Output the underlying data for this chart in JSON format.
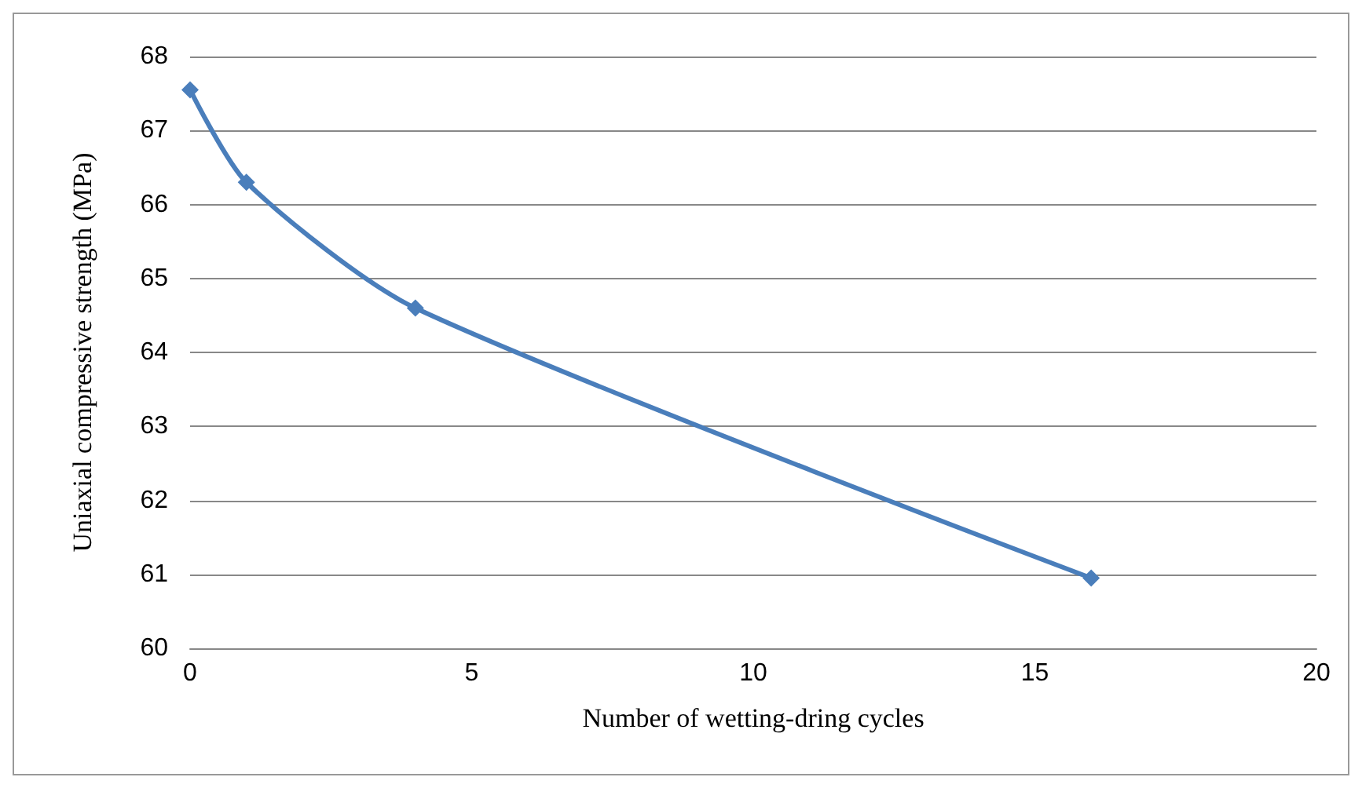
{
  "chart_data": {
    "type": "line",
    "xlabel": "Number of wetting-dring cycles",
    "ylabel": "Uniaxial compressive strength (MPa)",
    "x": [
      0,
      1,
      4,
      16
    ],
    "series": [
      {
        "color": "#4a7ebb",
        "values": [
          67.55,
          66.3,
          64.6,
          60.95
        ]
      }
    ],
    "xlim": [
      0,
      20
    ],
    "xticks": [
      0,
      5,
      10,
      15,
      20
    ],
    "ylim": [
      60,
      68
    ],
    "yticks": [
      60,
      61,
      62,
      63,
      64,
      65,
      66,
      67,
      68
    ],
    "grid": "y",
    "marker": "diamond"
  }
}
